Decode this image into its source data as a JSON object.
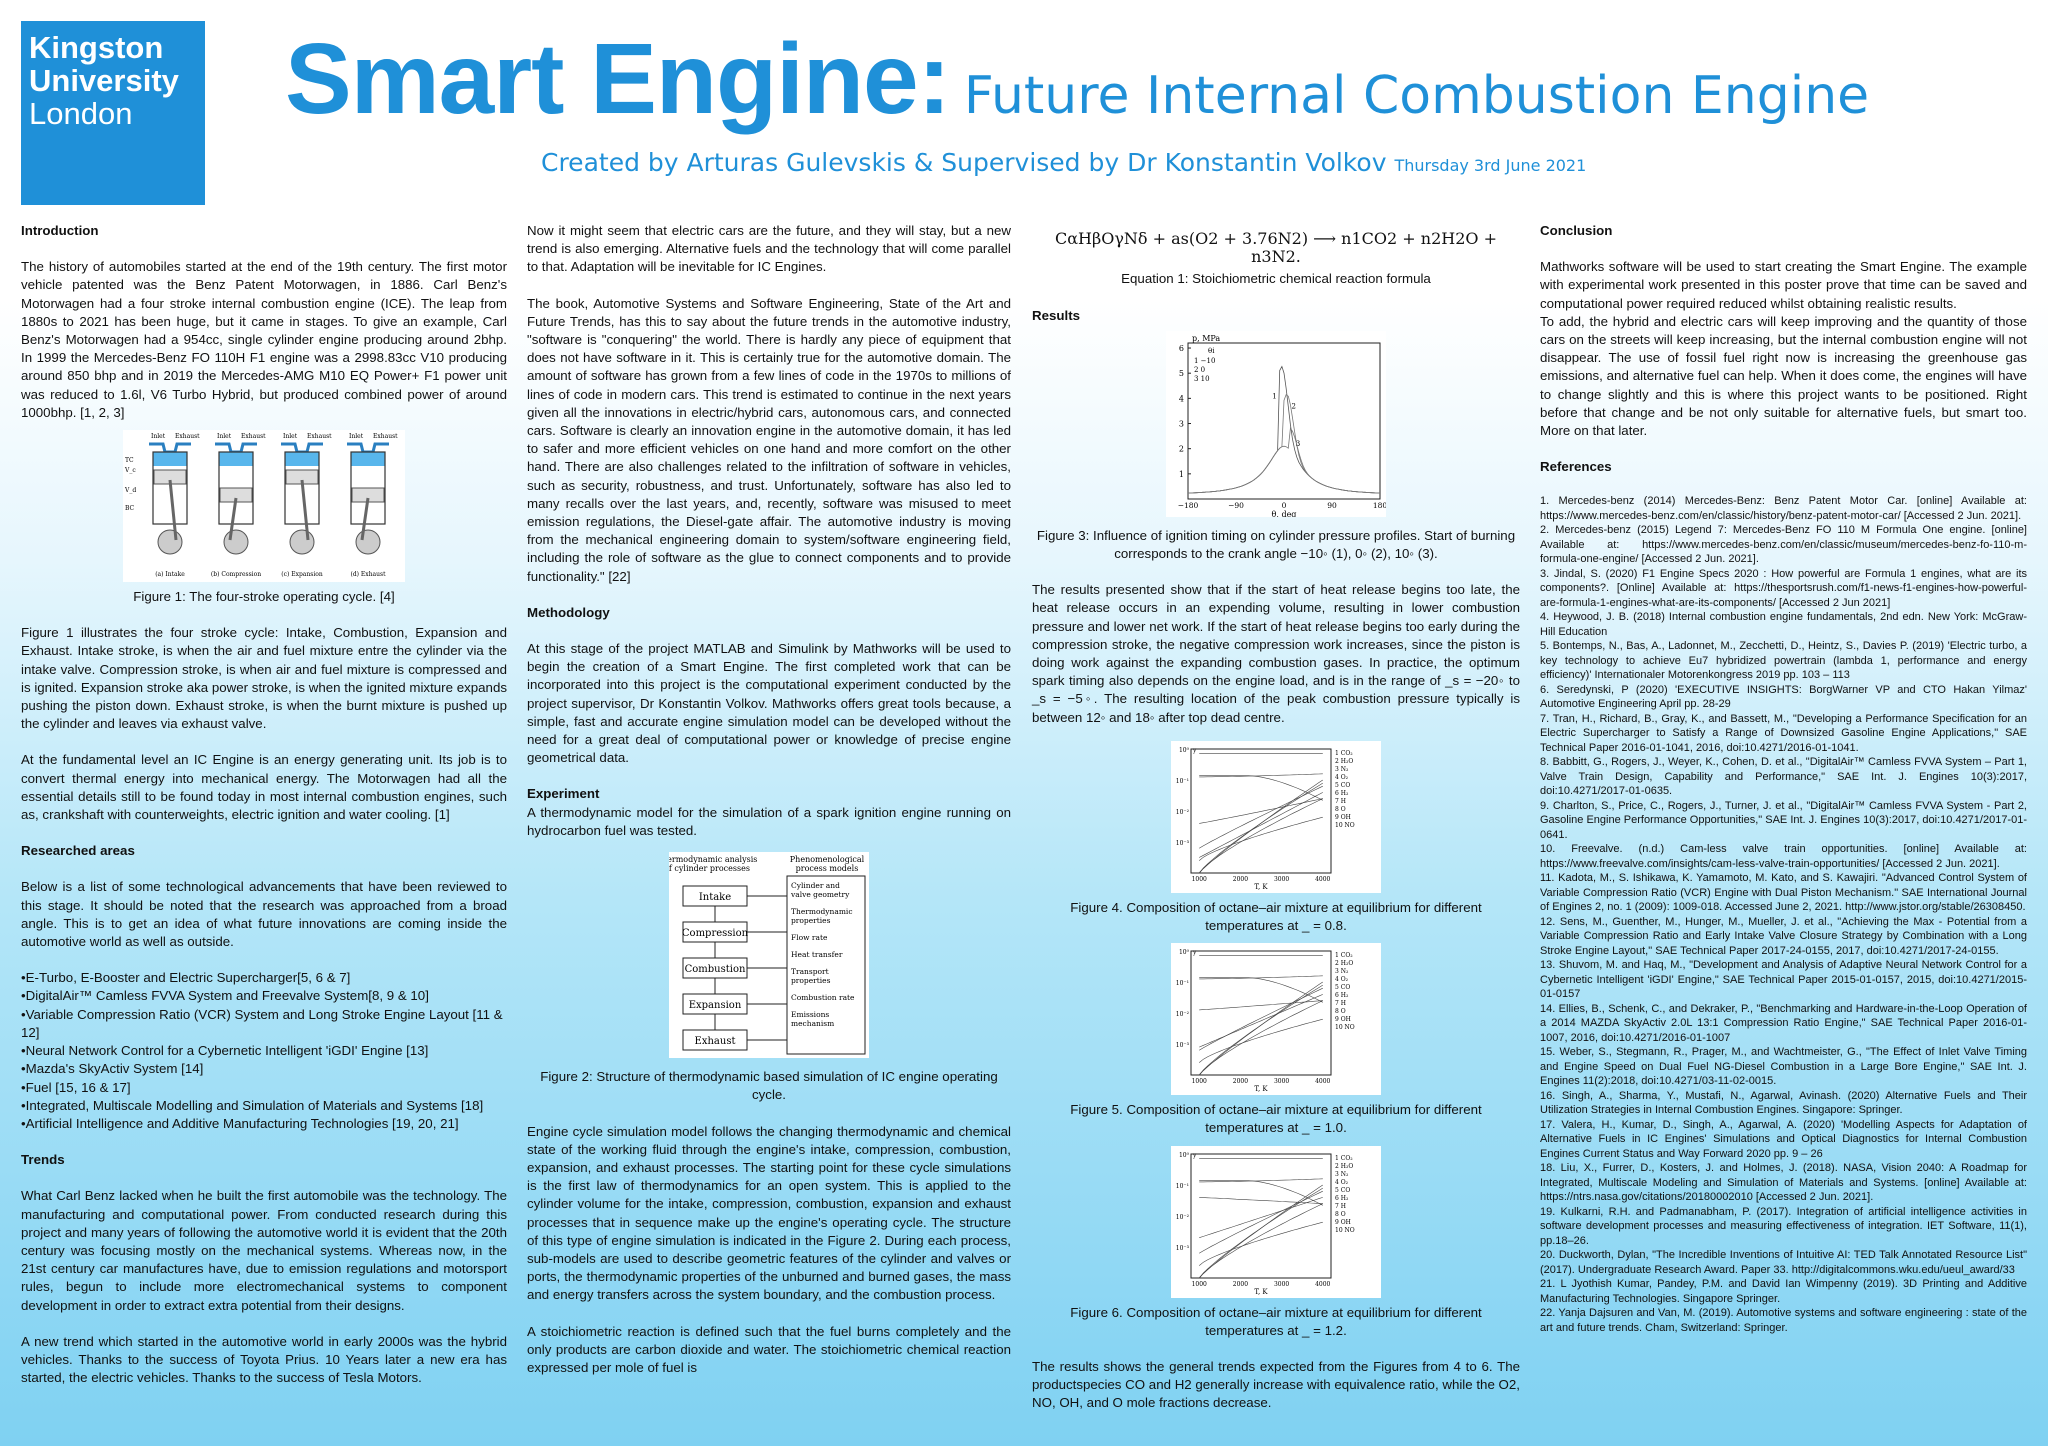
{
  "logo": {
    "line1": "Kingston",
    "line2": "University",
    "line3": "London"
  },
  "header": {
    "title": "Smart Engine:",
    "subtitle": "Future Internal Combustion Engine",
    "byline": "Created by Arturas Gulevskis & Supervised by Dr Konstantin Volkov",
    "date": "Thursday 3rd June 2021"
  },
  "intro": {
    "heading": "Introduction",
    "p1": "The history of automobiles started at the end of the 19th century. The first motor vehicle patented was the Benz Patent Motorwagen, in 1886. Carl Benz's Motorwagen had a four stroke internal combustion engine (ICE). The leap from 1880s to 2021 has been huge, but it came in stages. To give an example, Carl Benz's Motorwagen had a 954cc, single cylinder engine producing around 2bhp. In 1999 the Mercedes-Benz FO 110H F1 engine was a 2998.83cc V10 producing around 850 bhp and in 2019 the Mercedes-AMG M10 EQ Power+ F1 power unit was reduced to 1.6l, V6 Turbo Hybrid, but produced combined power of around 1000bhp. [1, 2, 3]",
    "fig1_caption": "Figure 1: The four-stroke operating cycle. [4]",
    "fig1_labels": [
      "Inlet",
      "Exhaust",
      "Inlet",
      "Exhaust",
      "Inlet",
      "Exhaust",
      "Inlet",
      "Exhaust",
      "(a) Intake",
      "(b) Compression",
      "(c) Expansion",
      "(d) Exhaust",
      "TC",
      "V_c",
      "V_d",
      "BC"
    ],
    "p2": "Figure 1 illustrates the four stroke cycle: Intake, Combustion, Expansion and Exhaust. Intake stroke, is when the air and fuel mixture entre the cylinder via the intake valve. Compression stroke, is when air and fuel mixture is compressed and is ignited. Expansion stroke aka power stroke, is when the ignited mixture expands pushing the piston down. Exhaust stroke, is when the burnt mixture is pushed up the cylinder and leaves via exhaust valve.",
    "p3": "At the fundamental level an IC Engine is an energy generating unit. Its job is to convert thermal energy into mechanical energy. The Motorwagen had all the essential details still to be found today in most internal combustion engines, such as, crankshaft with counterweights, electric ignition and water cooling. [1]"
  },
  "researched": {
    "heading": "Researched areas",
    "p1": "Below is a list of some technological advancements that have been reviewed to this stage. It should be noted that the research was approached from a broad angle. This is to get an idea of what future innovations are coming inside the automotive world as well as outside.",
    "items": [
      "E-Turbo, E-Booster and Electric Supercharger[5, 6 & 7]",
      "DigitalAir™ Camless FVVA System and Freevalve System[8, 9 & 10]",
      "Variable Compression Ratio (VCR) System and Long Stroke Engine Layout [11 & 12]",
      "Neural Network Control for a Cybernetic Intelligent 'iGDI' Engine [13]",
      "Mazda's SkyActiv System [14]",
      "Fuel [15, 16 & 17]",
      "Integrated, Multiscale Modelling and Simulation of Materials and Systems [18]",
      "Artificial Intelligence and Additive Manufacturing Technologies [19, 20, 21]"
    ]
  },
  "trends": {
    "heading": "Trends",
    "p1": "What Carl Benz lacked when he built the first automobile was the technology. The manufacturing and computational power. From conducted research during this project and many years of following the automotive world it is evident that the 20th century was focusing mostly on the mechanical systems. Whereas now, in the 21st century car manufactures have, due to emission regulations and motorsport rules, begun to include more electromechanical systems to component development in order to extract extra potential from their designs.",
    "p2": "A new trend which started in the automotive world in early 2000s was the hybrid vehicles. Thanks to the success of Toyota Prius. 10 Years later a new era has started, the electric vehicles. Thanks to the success of Tesla Motors.",
    "p3": "Now it might seem that electric cars are the future, and they will stay, but a new trend is also emerging. Alternative fuels and the technology that will come parallel to that. Adaptation will be inevitable for IC Engines.",
    "p4": "The book, Automotive Systems and Software Engineering, State of the Art and Future Trends, has this to say about the future trends in the automotive industry, \"software is \"conquering\" the world. There is hardly any piece of equipment that does not have software in it. This is certainly true for the automotive domain. The amount of software has grown from a few lines of code in the 1970s to millions of lines of code in modern cars. This trend is estimated to continue in the next years given all the innovations in electric/hybrid cars, autonomous cars, and connected cars. Software is clearly an innovation engine in the automotive domain, it has led to safer and more efficient vehicles on one hand and more comfort on the other hand. There are also challenges related to the infiltration of software in vehicles, such as security, robustness, and trust. Unfortunately, software has also led to many recalls over the last years, and, recently, software was misused to meet emission regulations, the Diesel-gate affair. The automotive industry is moving from the mechanical engineering domain to system/software engineering field, including the role of software as the glue to connect components and to provide functionality.\" [22]"
  },
  "methodology": {
    "heading": "Methodology",
    "p1": "At this stage of the project MATLAB and Simulink by Mathworks will be used to begin the creation of a Smart Engine. The first completed work that can be incorporated into this project is the computational experiment conducted by the project supervisor, Dr Konstantin Volkov. Mathworks offers great tools because, a simple, fast and accurate engine simulation model can be developed without the need for a great deal of computational power or knowledge of precise engine geometrical data."
  },
  "experiment": {
    "heading": "Experiment",
    "p1": "A thermodynamic model for the simulation of a spark ignition engine running on hydrocarbon fuel was tested.",
    "fig2": {
      "left_title": "Thermodynamic analysis of cylinder processes",
      "right_title": "Phenomenological process models",
      "boxes": [
        "Intake",
        "Compression",
        "Combustion",
        "Expansion",
        "Exhaust"
      ],
      "models": [
        "Cylinder and valve geometry",
        "Thermodynamic properties",
        "Flow rate",
        "Heat transfer",
        "Transport properties",
        "Combustion rate",
        "Emissions mechanism"
      ]
    },
    "fig2_caption": "Figure 2: Structure of thermodynamic based simulation of IC engine operating cycle.",
    "p2": "Engine cycle simulation model follows the changing thermodynamic and chemical state of the working fluid through the engine's intake, compression, combustion, expansion, and exhaust processes. The starting point for these cycle simulations is the first law of thermodynamics for an open system. This is applied to the cylinder volume for the intake, compression, combustion, expansion and exhaust processes that in sequence make up the engine's operating cycle. The structure of this type of engine simulation is indicated in the Figure 2. During each process, sub-models are used to describe geometric features of the cylinder and valves or ports, the thermodynamic properties of the unburned and burned gases, the mass and energy transfers across the system boundary, and the combustion process.",
    "p3": "A stoichiometric reaction is defined such that the fuel burns completely and the only products are carbon dioxide and water. The stoichiometric chemical reaction expressed per mole of fuel is"
  },
  "equation": {
    "text": "CαHβOγNδ + as(O2 + 3.76N2) ⟶ n1CO2 + n2H2O + n3N2.",
    "caption": "Equation 1: Stoichiometric chemical reaction formula"
  },
  "results": {
    "heading": "Results",
    "fig3_caption": "Figure 3: Influence of ignition timing on cylinder pressure profiles. Start of burning corresponds to the crank angle −10◦ (1), 0◦ (2), 10◦ (3).",
    "p1": "The results presented show that if the start of heat release begins too late, the heat release occurs in an expending volume, resulting in lower combustion pressure and lower net work. If the start of heat release begins too early during the compression stroke, the negative compression work increases, since the piston is doing work against the expanding combustion gases. In practice, the optimum spark timing also depends on the engine load, and is in the range of _s = −20◦ to _s = −5◦. The resulting location of the peak combustion pressure typically is between 12◦ and 18◦ after top dead centre.",
    "fig4_caption": "Figure 4. Composition of octane–air mixture at equilibrium for different temperatures at _ = 0.8.",
    "fig5_caption": "Figure 5. Composition of octane–air mixture at equilibrium for different temperatures at _ = 1.0.",
    "fig6_caption": "Figure 6. Composition of octane–air mixture at equilibrium for different temperatures at _ = 1.2.",
    "p2": "The results shows the general trends expected from the Figures from 4 to 6. The productspecies CO and H2 generally increase with equivalence ratio, while the O2, NO, OH, and O mole fractions decrease."
  },
  "fig3_chart": {
    "ylabel": "p, MPa",
    "xlabel": "θ, deg",
    "yticks": [
      "1",
      "2",
      "3",
      "4",
      "5",
      "6"
    ],
    "xticks": [
      "−180",
      "−90",
      "0",
      "90",
      "180"
    ],
    "legend_header": "θi",
    "legend": [
      [
        "1",
        "−10"
      ],
      [
        "2",
        "0"
      ],
      [
        "3",
        "10"
      ]
    ],
    "curve_labels": [
      "1",
      "2",
      "3"
    ]
  },
  "species_chart": {
    "xlabel": "T, K",
    "xticks": [
      "1000",
      "2000",
      "3000",
      "4000"
    ],
    "yticks": [
      "10⁰",
      "10⁻¹",
      "10⁻²",
      "10⁻³"
    ],
    "y_axis_label": "y",
    "legend": [
      "1  CO₂",
      "2  H₂O",
      "3  N₂",
      "4  O₂",
      "5  CO",
      "6  H₂",
      "7  H",
      "8  O",
      "9  OH",
      "10  NO"
    ]
  },
  "conclusion": {
    "heading": "Conclusion",
    "p1": "Mathworks software will be used to start creating the Smart Engine. The example with experimental work presented in this poster prove that time can be saved and computational power required reduced whilst obtaining realistic results.",
    "p2": "To add, the hybrid and electric cars will keep improving and the quantity of those cars on the streets will keep increasing, but the internal combustion engine will not disappear. The use of fossil fuel right now is increasing the greenhouse gas emissions, and alternative fuel can help. When it does come, the engines will have to change slightly and this is where this project wants to be positioned. Right before that change and be not only suitable for alternative fuels, but smart too. More on that later."
  },
  "references": {
    "heading": "References",
    "items": [
      "1. Mercedes-benz (2014) Mercedes-Benz: Benz Patent Motor Car. [online] Available at: https://www.mercedes-benz.com/en/classic/history/benz-patent-motor-car/ [Accessed 2 Jun. 2021].",
      "2. Mercedes-benz (2015) Legend 7: Mercedes-Benz FO 110 M Formula One engine. [online] Available at: https://www.mercedes-benz.com/en/classic/museum/mercedes-benz-fo-110-m-formula-one-engine/ [Accessed 2 Jun. 2021].",
      "3. Jindal, S. (2020) F1 Engine Specs 2020 : How powerful are Formula 1 engines, what are its components?. [Online] Available at: https://thesportsrush.com/f1-news-f1-engines-how-powerful-are-formula-1-engines-what-are-its-components/ [Accessed 2 Jun 2021]",
      "4. Heywood, J. B. (2018) Internal combustion engine fundamentals, 2nd edn. New York: McGraw-Hill Education",
      "5. Bontemps, N., Bas, A., Ladonnet, M., Zecchetti, D., Heintz, S., Davies P. (2019) 'Electric turbo, a key technology to achieve Eu7 hybridized powertrain (lambda 1, performance and energy efficiency)' Internationaler Motorenkongress 2019 pp. 103 – 113",
      "6. Seredynski, P (2020) 'EXECUTIVE INSIGHTS: BorgWarner VP and CTO Hakan Yilmaz' Automotive Engineering April pp. 28-29",
      "7. Tran, H., Richard, B., Gray, K., and Bassett, M., \"Developing a Performance Specification for an Electric Supercharger to Satisfy a Range of Downsized Gasoline Engine Applications,\" SAE Technical Paper 2016-01-1041, 2016, doi:10.4271/2016-01-1041.",
      "8. Babbitt, G., Rogers, J., Weyer, K., Cohen, D. et al., \"DigitalAir™ Camless FVVA System – Part 1, Valve Train Design, Capability and Performance,\" SAE Int. J. Engines 10(3):2017, doi:10.4271/2017-01-0635.",
      "9. Charlton, S., Price, C., Rogers, J., Turner, J. et al., \"DigitalAir™ Camless FVVA System - Part 2, Gasoline Engine Performance Opportunities,\" SAE Int. J. Engines 10(3):2017, doi:10.4271/2017-01-0641.",
      "10. Freevalve. (n.d.) Cam-less valve train opportunities. [online] Available at: https://www.freevalve.com/insights/cam-less-valve-train-opportunities/ [Accessed 2 Jun. 2021].",
      "11. Kadota, M., S. Ishikawa, K. Yamamoto, M. Kato, and S. Kawajiri. \"Advanced Control System of Variable Compression Ratio (VCR) Engine with Dual Piston Mechanism.\" SAE International Journal of Engines 2, no. 1 (2009): 1009-018. Accessed June 2, 2021. http://www.jstor.org/stable/26308450.",
      "12. Sens, M., Guenther, M., Hunger, M., Mueller, J. et al., \"Achieving the Max - Potential from a Variable Compression Ratio and Early Intake Valve Closure Strategy by Combination with a Long Stroke Engine Layout,\" SAE Technical Paper 2017-24-0155, 2017, doi:10.4271/2017-24-0155.",
      "13. Shuvom, M. and Haq, M., \"Development and Analysis of Adaptive Neural Network Control for a Cybernetic Intelligent 'iGDI' Engine,\" SAE Technical Paper 2015-01-0157, 2015, doi:10.4271/2015-01-0157",
      "14. Ellies, B., Schenk, C., and Dekraker, P., \"Benchmarking and Hardware-in-the-Loop Operation of a 2014 MAZDA SkyActiv 2.0L 13:1 Compression Ratio Engine,\" SAE Technical Paper 2016-01-1007, 2016, doi:10.4271/2016-01-1007",
      "15. Weber, S., Stegmann, R., Prager, M., and Wachtmeister, G., \"The Effect of Inlet Valve Timing and Engine Speed on Dual Fuel NG-Diesel Combustion in a Large Bore Engine,\" SAE Int. J. Engines 11(2):2018, doi:10.4271/03-11-02-0015.",
      "16. Singh, A., Sharma, Y., Mustafi, N., Agarwal, Avinash. (2020) Alternative Fuels and Their Utilization Strategies in Internal Combustion Engines. Singapore: Springer.",
      "17. Valera, H., Kumar, D., Singh, A., Agarwal, A. (2020) 'Modelling Aspects for Adaptation of Alternative Fuels in IC Engines' Simulations and Optical Diagnostics for Internal Combustion Engines Current Status and Way Forward 2020 pp. 9 – 26",
      "18. Liu, X., Furrer, D., Kosters, J. and Holmes, J. (2018). NASA, Vision 2040: A Roadmap for Integrated, Multiscale Modeling and Simulation of Materials and Systems. [online] Available at: https://ntrs.nasa.gov/citations/20180002010 [Accessed 2 Jun. 2021].",
      "19. Kulkarni, R.H. and Padmanabham, P. (2017). Integration of artificial intelligence activities in software development processes and measuring effectiveness of integration. IET Software, 11(1), pp.18–26.",
      "20. Duckworth, Dylan, \"The Incredible Inventions of Intuitive AI: TED Talk Annotated Resource List\" (2017). Undergraduate Research Award. Paper 33. http://digitalcommons.wku.edu/ueul_award/33",
      "21. L Jyothish Kumar, Pandey, P.M. and David Ian Wimpenny (2019). 3D Printing and Additive Manufacturing Technologies. Singapore Springer.",
      "22. Yanja Dajsuren and Van, M. (2019). Automotive systems and software engineering : state of the art and future trends. Cham, Switzerland: Springer."
    ]
  }
}
